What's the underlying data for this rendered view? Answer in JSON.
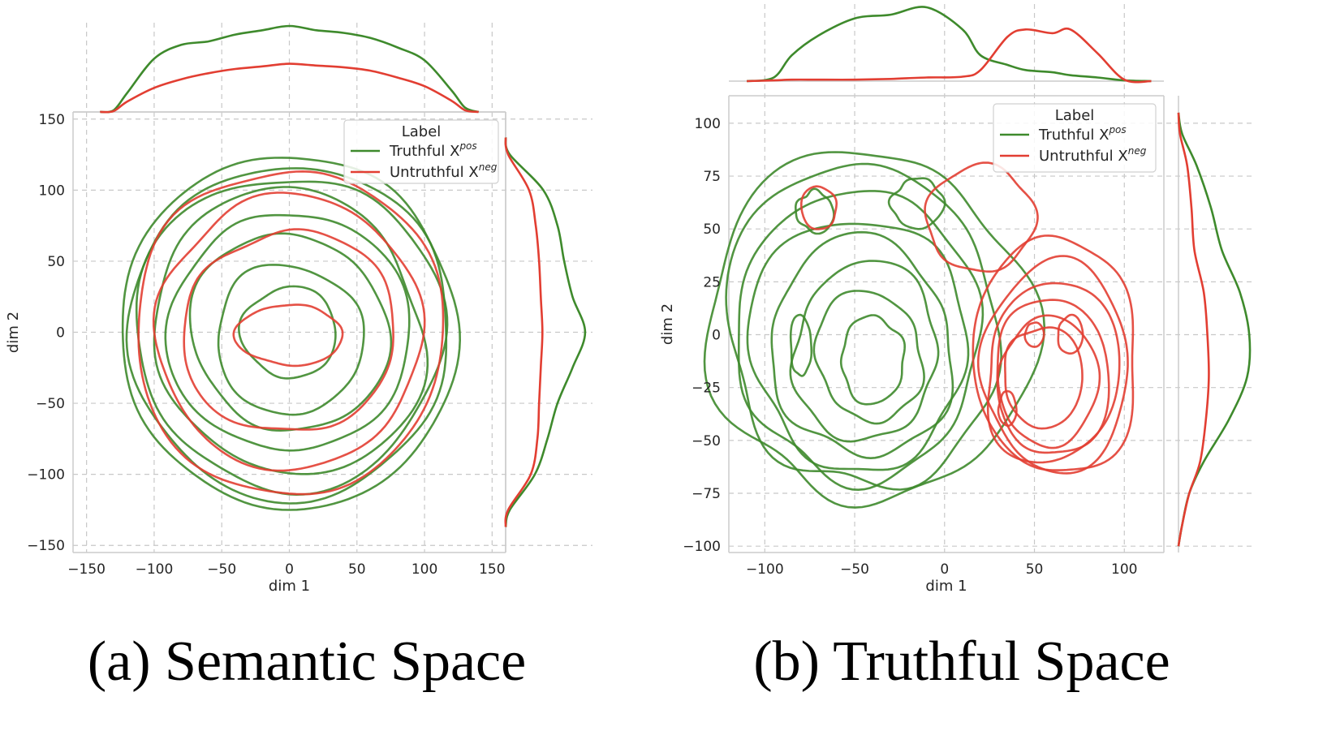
{
  "colors": {
    "truthful": "#3e8a2c",
    "untruthful": "#e23e32",
    "grid": "#c8c8c8",
    "spine": "#cccccc",
    "text": "#262626"
  },
  "chart_data": [
    {
      "type": "contour",
      "caption": "(a) Semantic Space",
      "xlabel": "dim 1",
      "ylabel": "dim 2",
      "xlim": [
        -160,
        160
      ],
      "ylim": [
        -155,
        155
      ],
      "xticks": [
        -150,
        -100,
        -50,
        0,
        50,
        100,
        150
      ],
      "yticks": [
        -150,
        -100,
        -50,
        0,
        50,
        100,
        150
      ],
      "xtick_labels": [
        "−150",
        "−100",
        "−50",
        "0",
        "50",
        "100",
        "150"
      ],
      "ytick_labels": [
        "−150",
        "−100",
        "−50",
        "0",
        "50",
        "100",
        "150"
      ],
      "grid": true,
      "legend": {
        "title": "Label",
        "placement": "top-right",
        "entries": [
          {
            "prefix": "Truthful X",
            "sup": "pos"
          },
          {
            "prefix": "Untruthful X",
            "sup": "neg"
          }
        ]
      },
      "series": [
        {
          "name": "Truthful X^pos",
          "color_key": "truthful",
          "contours": [
            {
              "cx": 0,
              "cy": 0,
              "rx": 35,
              "ry": 32,
              "wobble": 0.06,
              "seed": 1
            },
            {
              "cx": 0,
              "cy": -5,
              "rx": 55,
              "ry": 52,
              "wobble": 0.07,
              "seed": 2
            },
            {
              "cx": 0,
              "cy": 0,
              "rx": 72,
              "ry": 70,
              "wobble": 0.07,
              "seed": 3
            },
            {
              "cx": 0,
              "cy": 0,
              "rx": 85,
              "ry": 88,
              "wobble": 0.06,
              "seed": 4
            },
            {
              "cx": 0,
              "cy": 0,
              "rx": 100,
              "ry": 100,
              "wobble": 0.05,
              "seed": 5
            },
            {
              "cx": 0,
              "cy": 0,
              "rx": 112,
              "ry": 112,
              "wobble": 0.04,
              "seed": 6
            },
            {
              "cx": 0,
              "cy": 0,
              "rx": 118,
              "ry": 118,
              "wobble": 0.04,
              "seed": 7
            },
            {
              "cx": 0,
              "cy": 0,
              "rx": 124,
              "ry": 125,
              "wobble": 0.04,
              "seed": 8
            }
          ]
        },
        {
          "name": "Untruthful X^neg",
          "color_key": "untruthful",
          "contours": [
            {
              "cx": 0,
              "cy": -2,
              "rx": 38,
              "ry": 22,
              "wobble": 0.05,
              "seed": 11
            },
            {
              "cx": 0,
              "cy": 0,
              "rx": 78,
              "ry": 72,
              "wobble": 0.05,
              "seed": 12
            },
            {
              "cx": 0,
              "cy": 0,
              "rx": 98,
              "ry": 96,
              "wobble": 0.04,
              "seed": 13
            },
            {
              "cx": 0,
              "cy": 0,
              "rx": 114,
              "ry": 115,
              "wobble": 0.03,
              "seed": 14
            }
          ]
        }
      ],
      "marginal_x": {
        "x": [
          -140,
          -130,
          -120,
          -100,
          -80,
          -60,
          -40,
          -20,
          0,
          20,
          40,
          60,
          80,
          100,
          120,
          130,
          140
        ],
        "truthful": [
          0,
          0.02,
          0.22,
          0.62,
          0.78,
          0.82,
          0.9,
          0.95,
          1.0,
          0.95,
          0.92,
          0.86,
          0.75,
          0.6,
          0.25,
          0.05,
          0
        ],
        "untruthful": [
          0,
          0.01,
          0.12,
          0.28,
          0.38,
          0.45,
          0.5,
          0.53,
          0.56,
          0.54,
          0.52,
          0.48,
          0.4,
          0.3,
          0.13,
          0.02,
          0
        ]
      },
      "marginal_y": {
        "y": [
          -137,
          -125,
          -100,
          -75,
          -50,
          -25,
          0,
          25,
          50,
          75,
          100,
          125,
          137
        ],
        "truthful": [
          0,
          0.05,
          0.35,
          0.5,
          0.62,
          0.8,
          0.95,
          0.8,
          0.7,
          0.62,
          0.45,
          0.05,
          0
        ],
        "untruthful": [
          0,
          0.03,
          0.3,
          0.38,
          0.4,
          0.42,
          0.44,
          0.42,
          0.4,
          0.36,
          0.28,
          0.03,
          0
        ]
      }
    },
    {
      "type": "contour",
      "caption": "(b) Truthful Space",
      "xlabel": "dim 1",
      "ylabel": "dim 2",
      "xlim": [
        -120,
        122
      ],
      "ylim": [
        -103,
        113
      ],
      "xticks": [
        -100,
        -50,
        0,
        50,
        100
      ],
      "yticks": [
        -100,
        -75,
        -50,
        -25,
        0,
        25,
        50,
        75,
        100
      ],
      "xtick_labels": [
        "−100",
        "−50",
        "0",
        "50",
        "100"
      ],
      "ytick_labels": [
        "−100",
        "−75",
        "−50",
        "−25",
        "0",
        "25",
        "50",
        "75",
        "100"
      ],
      "grid": true,
      "legend": {
        "title": "Label",
        "placement": "top-right",
        "entries": [
          {
            "prefix": "Truthful X",
            "sup": "pos"
          },
          {
            "prefix": "Untruthful X",
            "sup": "neg"
          }
        ]
      },
      "series": [
        {
          "name": "Truthful X^pos",
          "color_key": "truthful",
          "contours": [
            {
              "cx": -40,
              "cy": -12,
              "rx": 18,
              "ry": 20,
              "wobble": 0.08,
              "seed": 21
            },
            {
              "cx": -42,
              "cy": -10,
              "rx": 30,
              "ry": 30,
              "wobble": 0.08,
              "seed": 22
            },
            {
              "cx": -44,
              "cy": -8,
              "rx": 42,
              "ry": 40,
              "wobble": 0.08,
              "seed": 23
            },
            {
              "cx": -46,
              "cy": -6,
              "rx": 52,
              "ry": 50,
              "wobble": 0.08,
              "seed": 24
            },
            {
              "cx": -48,
              "cy": -4,
              "rx": 60,
              "ry": 60,
              "wobble": 0.07,
              "seed": 25
            },
            {
              "cx": -48,
              "cy": 0,
              "rx": 68,
              "ry": 68,
              "wobble": 0.07,
              "seed": 26
            },
            {
              "cx": -46,
              "cy": 4,
              "rx": 76,
              "ry": 76,
              "wobble": 0.07,
              "seed": 27
            },
            {
              "cx": -42,
              "cy": 4,
              "rx": 86,
              "ry": 86,
              "wobble": 0.07,
              "seed": 28
            },
            {
              "cx": -80,
              "cy": -5,
              "rx": 6,
              "ry": 14,
              "wobble": 0.05,
              "seed": 29
            },
            {
              "cx": -72,
              "cy": 58,
              "rx": 10,
              "ry": 10,
              "wobble": 0.1,
              "seed": 30
            },
            {
              "cx": -15,
              "cy": 62,
              "rx": 14,
              "ry": 12,
              "wobble": 0.1,
              "seed": 31
            }
          ]
        },
        {
          "name": "Untruthful X^neg",
          "color_key": "untruthful",
          "contours": [
            {
              "cx": 50,
              "cy": 0,
              "rx": 5,
              "ry": 6,
              "wobble": 0.05,
              "seed": 41
            },
            {
              "cx": 70,
              "cy": 0,
              "rx": 7,
              "ry": 9,
              "wobble": 0.05,
              "seed": 42
            },
            {
              "cx": 35,
              "cy": -35,
              "rx": 5,
              "ry": 8,
              "wobble": 0.05,
              "seed": 43
            },
            {
              "cx": 55,
              "cy": -20,
              "rx": 22,
              "ry": 24,
              "wobble": 0.06,
              "seed": 44
            },
            {
              "cx": 58,
              "cy": -22,
              "rx": 28,
              "ry": 30,
              "wobble": 0.06,
              "seed": 45
            },
            {
              "cx": 60,
              "cy": -20,
              "rx": 33,
              "ry": 36,
              "wobble": 0.06,
              "seed": 46
            },
            {
              "cx": 60,
              "cy": -18,
              "rx": 38,
              "ry": 42,
              "wobble": 0.06,
              "seed": 47
            },
            {
              "cx": 62,
              "cy": -15,
              "rx": 42,
              "ry": 48,
              "wobble": 0.06,
              "seed": 48
            },
            {
              "cx": 62,
              "cy": -10,
              "rx": 46,
              "ry": 56,
              "wobble": 0.07,
              "seed": 49
            },
            {
              "cx": 20,
              "cy": 55,
              "rx": 30,
              "ry": 25,
              "wobble": 0.1,
              "seed": 50
            },
            {
              "cx": -70,
              "cy": 60,
              "rx": 10,
              "ry": 10,
              "wobble": 0.08,
              "seed": 51
            }
          ]
        }
      ],
      "marginal_x": {
        "x": [
          -110,
          -95,
          -85,
          -70,
          -50,
          -30,
          -10,
          10,
          20,
          35,
          45,
          60,
          70,
          85,
          100,
          115
        ],
        "truthful": [
          0,
          0.05,
          0.35,
          0.62,
          0.85,
          0.9,
          1.0,
          0.7,
          0.35,
          0.22,
          0.15,
          0.12,
          0.08,
          0.05,
          0.01,
          0
        ],
        "untruthful": [
          0,
          0.01,
          0.02,
          0.02,
          0.02,
          0.03,
          0.05,
          0.06,
          0.15,
          0.6,
          0.7,
          0.65,
          0.7,
          0.38,
          0.02,
          0
        ]
      },
      "marginal_y": {
        "y": [
          -100,
          -90,
          -75,
          -60,
          -40,
          -20,
          0,
          20,
          40,
          60,
          80,
          95,
          105
        ],
        "truthful": [
          0,
          0.05,
          0.15,
          0.35,
          0.7,
          0.95,
          0.98,
          0.85,
          0.6,
          0.45,
          0.25,
          0.05,
          0
        ],
        "untruthful": [
          0,
          0.05,
          0.15,
          0.3,
          0.38,
          0.42,
          0.4,
          0.35,
          0.22,
          0.18,
          0.12,
          0.02,
          0
        ]
      }
    }
  ]
}
